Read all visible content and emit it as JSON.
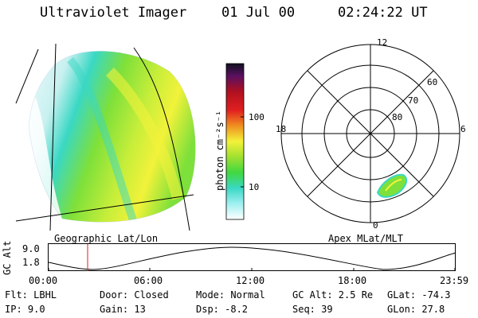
{
  "header": {
    "instrument": "Ultraviolet Imager",
    "date": "01 Jul 00",
    "time": "02:24:22 UT"
  },
  "image_panel": {
    "projection_label": "Geographic Lat/Lon"
  },
  "colorbar": {
    "unit_label": "photon cm⁻²s⁻¹",
    "ticks": [
      "100",
      "10"
    ]
  },
  "polar_panel": {
    "projection_label": "Apex MLat/MLT",
    "mlt_labels": [
      "12",
      "18",
      "6",
      "0"
    ],
    "mlat_labels": [
      "60",
      "70",
      "80"
    ]
  },
  "altitude_panel": {
    "ylabel": "GC Alt",
    "ytick_top": "9.0",
    "ytick_bottom": "1.8",
    "xticks": [
      "00:00",
      "06:00",
      "12:00",
      "18:00",
      "23:59"
    ]
  },
  "info": {
    "filter": "Flt: LBHL",
    "ip": "IP:  9.0",
    "door": "Door: Closed",
    "gain": "Gain: 13",
    "mode": "Mode: Normal",
    "dsp": "Dsp:   -8.2",
    "gc_alt": "GC Alt: 2.5 Re",
    "seq": "Seq: 39",
    "glat": "GLat: -74.3",
    "glon": "GLon:  27.8"
  },
  "colors": {
    "auroral_green": "#7ee03a",
    "auroral_yellow": "#f2f23a",
    "cyan": "#3ad8c4",
    "marker_red": "#e02020"
  }
}
